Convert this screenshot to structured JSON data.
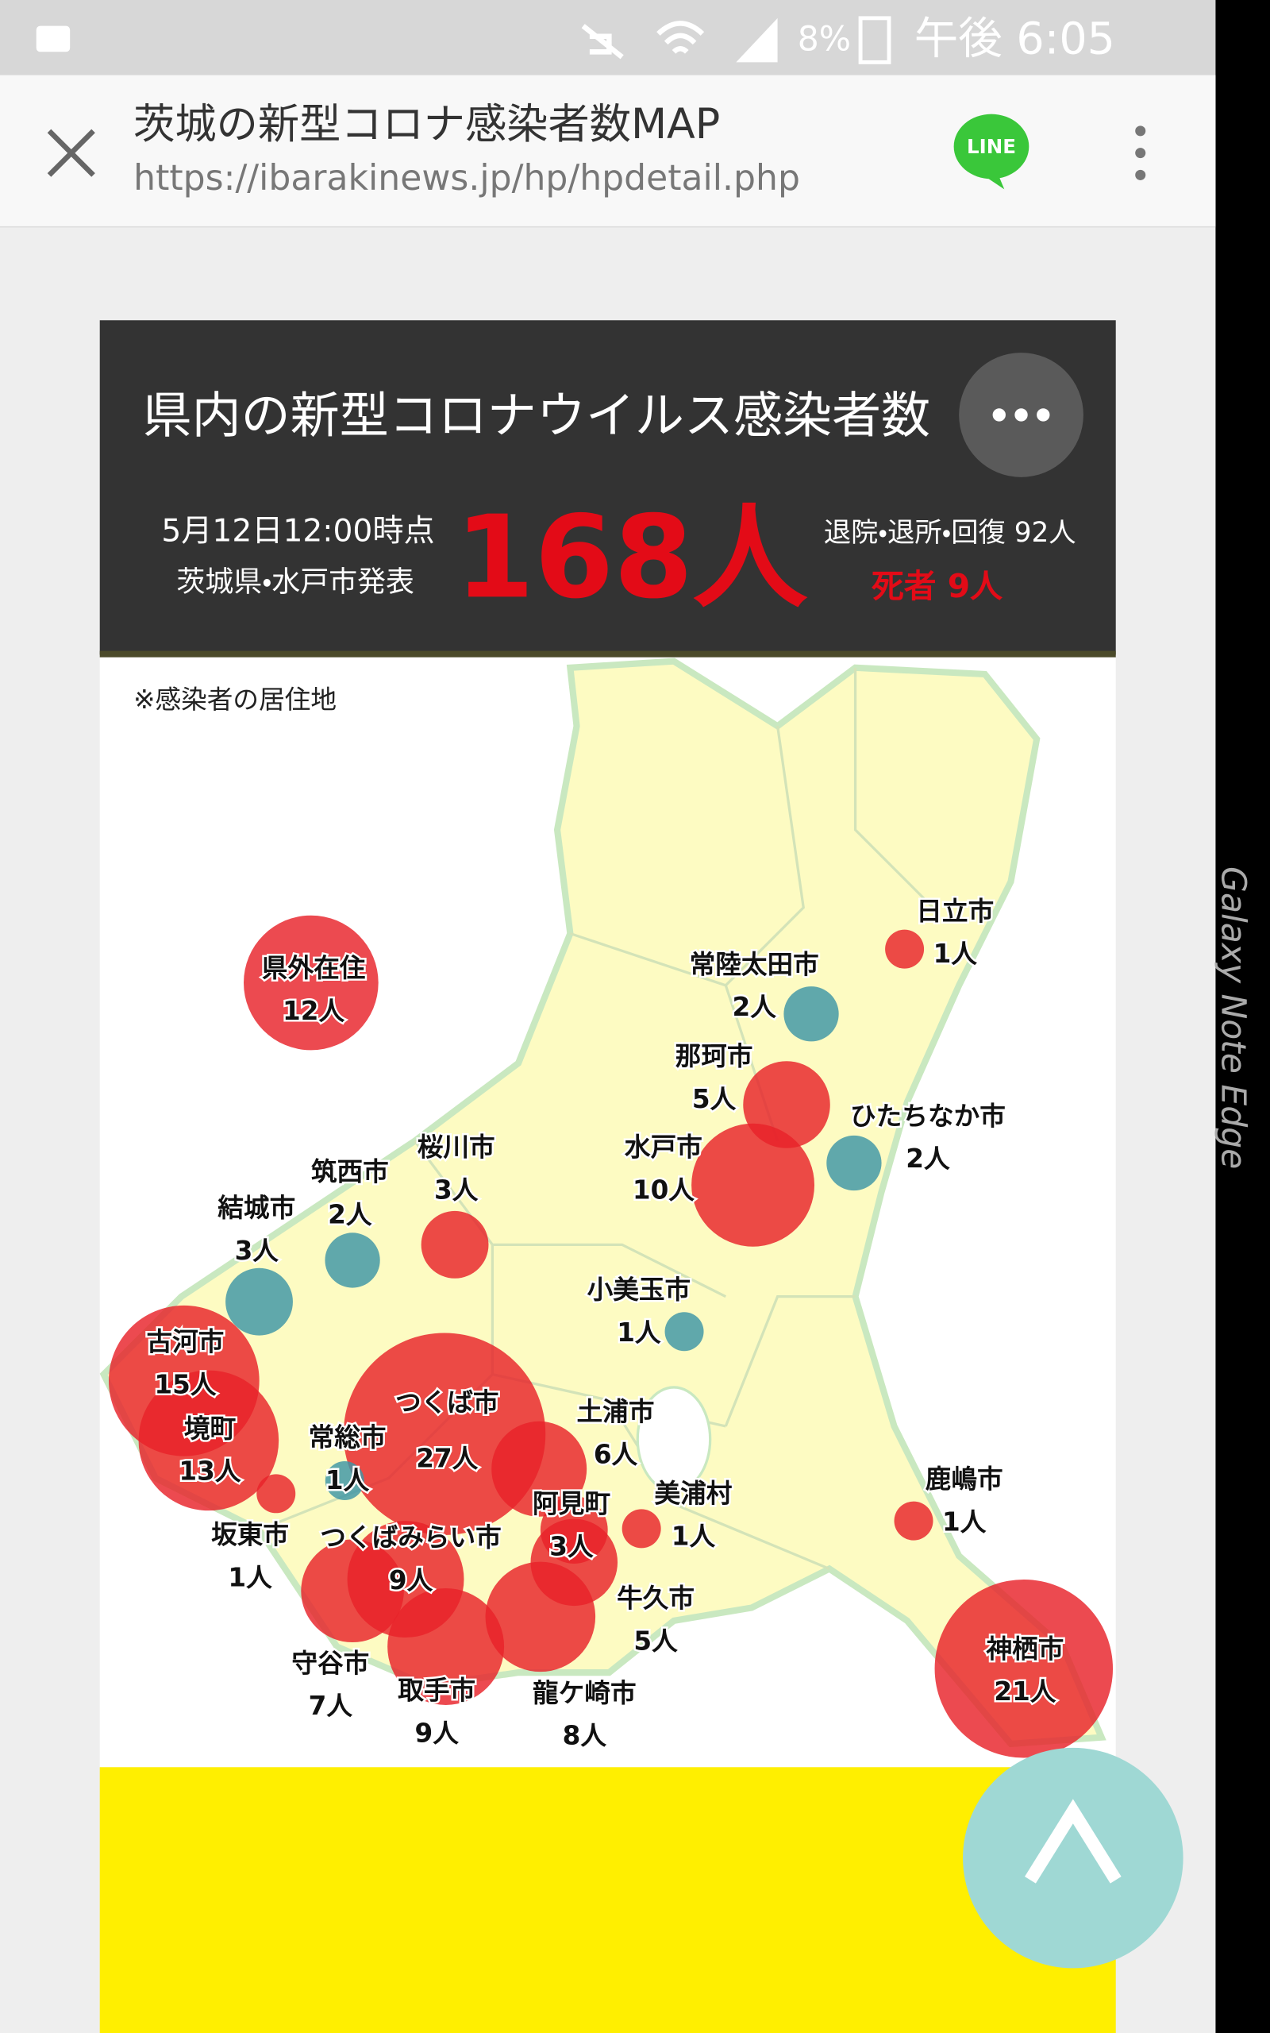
{
  "status_bar": {
    "battery": "8%",
    "time": "午後 6:05"
  },
  "device_edge_text": "Galaxy Note Edge",
  "browser": {
    "title": "茨城の新型コロナ感染者数MAP",
    "url": "https://ibarakinews.jp/hp/hpdetail.php",
    "line_button": "LINE"
  },
  "card": {
    "title": "県内の新型コロナウイルス感染者数",
    "as_of": "5月12日12:00時点",
    "source": "茨城県・水戸市発表",
    "total": "168人",
    "recovered": "退院・退所・回復 92人",
    "deaths": "死者 9人",
    "note": "※感染者の居住地",
    "places": [
      {
        "name": "県外在住",
        "count": {
          "value": 12,
          "label": "12人"
        },
        "color": "#e8222a"
      },
      {
        "name": "日立市",
        "count": {
          "value": 1,
          "label": "1人"
        },
        "color": "#e8222a"
      },
      {
        "name": "常陸太田市",
        "count": {
          "value": 2,
          "label": "2人"
        },
        "color": "#3d95a6"
      },
      {
        "name": "那珂市",
        "count": {
          "value": 5,
          "label": "5人"
        },
        "color": "#e8222a"
      },
      {
        "name": "ひたちなか市",
        "count": {
          "value": 2,
          "label": "2人"
        },
        "color": "#3d95a6"
      },
      {
        "name": "水戸市",
        "count": {
          "value": 10,
          "label": "10人"
        },
        "color": "#e8222a"
      },
      {
        "name": "桜川市",
        "count": {
          "value": 3,
          "label": "3人"
        },
        "color": "#e8222a"
      },
      {
        "name": "筑西市",
        "count": {
          "value": 2,
          "label": "2人"
        },
        "color": "#3d95a6"
      },
      {
        "name": "結城市",
        "count": {
          "value": 3,
          "label": "3人"
        },
        "color": "#3d95a6"
      },
      {
        "name": "小美玉市",
        "count": {
          "value": 1,
          "label": "1人"
        },
        "color": "#3d95a6"
      },
      {
        "name": "古河市",
        "count": {
          "value": 15,
          "label": "15人"
        },
        "color": "#e8222a"
      },
      {
        "name": "境町",
        "count": {
          "value": 13,
          "label": "13人"
        },
        "color": "#e8222a"
      },
      {
        "name": "坂東市",
        "count": {
          "value": 1,
          "label": "1人"
        },
        "color": "#e8222a"
      },
      {
        "name": "常総市",
        "count": {
          "value": 1,
          "label": "1人"
        },
        "color": "#3d95a6"
      },
      {
        "name": "つくば市",
        "count": {
          "value": 27,
          "label": "27人"
        },
        "color": "#e8222a"
      },
      {
        "name": "土浦市",
        "count": {
          "value": 6,
          "label": "6人"
        },
        "color": "#e8222a"
      },
      {
        "name": "阿見町",
        "count": {
          "value": 3,
          "label": "3人"
        },
        "color": "#e8222a"
      },
      {
        "name": "美浦村",
        "count": {
          "value": 1,
          "label": "1人"
        },
        "color": "#e8222a"
      },
      {
        "name": "つくばみらい市",
        "count": {
          "value": 9,
          "label": "9人"
        },
        "color": "#e8222a"
      },
      {
        "name": "守谷市",
        "count": {
          "value": 7,
          "label": "7人"
        },
        "color": "#e8222a"
      },
      {
        "name": "取手市",
        "count": {
          "value": 9,
          "label": "9人"
        },
        "color": "#e8222a"
      },
      {
        "name": "龍ケ崎市",
        "count": {
          "value": 8,
          "label": "8人"
        },
        "color": "#e8222a"
      },
      {
        "name": "牛久市",
        "count": {
          "value": 5,
          "label": "5人"
        },
        "color": "#e8222a"
      },
      {
        "name": "鹿嶋市",
        "count": {
          "value": 1,
          "label": "1人"
        },
        "color": "#e8222a"
      },
      {
        "name": "神栖市",
        "count": {
          "value": 21,
          "label": "21人"
        },
        "color": "#e8222a"
      }
    ]
  }
}
